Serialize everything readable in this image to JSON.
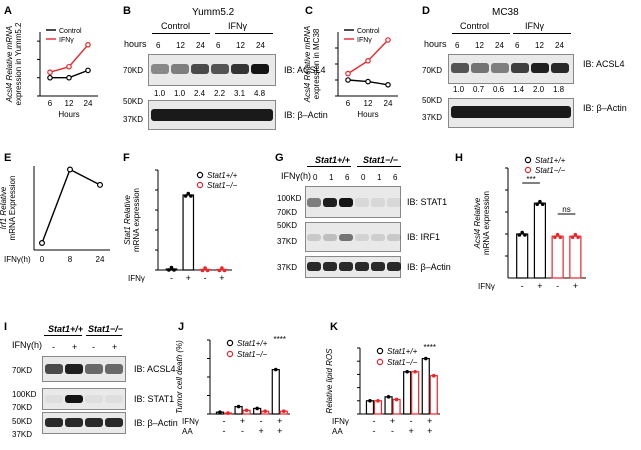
{
  "panels": {
    "A": {
      "letter": "A",
      "ylabel1": "Acsl4 Relative mRNA",
      "ylabel2": "expression in Yumm5.2",
      "xlabel": "Hours",
      "legend": [
        "Control",
        "IFNγ"
      ],
      "ticks": [
        "6",
        "12",
        "24"
      ]
    },
    "B": {
      "letter": "B",
      "title": "Yumm5.2",
      "cond_control": "Control",
      "cond_ifn": "IFNγ",
      "hours_label": "hours",
      "hours": [
        "6",
        "12",
        "24",
        "6",
        "12",
        "24"
      ],
      "values": [
        "1.0",
        "1.0",
        "2.4",
        "2.2",
        "3.1",
        "4.8"
      ],
      "ib1": "IB: ACSL4",
      "ib2": "IB: β–Actin",
      "mw1": "70KD",
      "mw2": "50KD",
      "mw3": "37KD"
    },
    "C": {
      "letter": "C",
      "ylabel1": "Acsl4 Relative mRNA",
      "ylabel2": "expression in MC38",
      "xlabel": "Hours",
      "legend": [
        "Control",
        "IFNγ"
      ],
      "ticks": [
        "6",
        "12",
        "24"
      ]
    },
    "D": {
      "letter": "D",
      "title": "MC38",
      "cond_control": "Control",
      "cond_ifn": "IFNγ",
      "hours_label": "hours",
      "hours": [
        "6",
        "12",
        "24",
        "6",
        "12",
        "24"
      ],
      "values": [
        "1.0",
        "0.7",
        "0.6",
        "1.4",
        "2.0",
        "1.8"
      ],
      "ib1": "IB: ACSL4",
      "ib2": "IB: β–Actin",
      "mw1": "70KD",
      "mw2": "50KD",
      "mw3": "37KD"
    },
    "E": {
      "letter": "E",
      "ylabel1": "Irf1 Relative",
      "ylabel2": "mRNA Expression",
      "xlabel": "IFNγ(h)",
      "ticks": [
        "0",
        "8",
        "24"
      ]
    },
    "F": {
      "letter": "F",
      "ylabel1": "Stat1 Relative",
      "ylabel2": "mRNA expression",
      "legend": [
        "Stat1+/+",
        "Stat1−/−"
      ],
      "row_label": "IFNγ",
      "signs": [
        "-",
        "+",
        "-",
        "+"
      ]
    },
    "G": {
      "letter": "G",
      "geno1": "Stat1+/+",
      "geno2": "Stat1−/−",
      "time_label": "IFNγ(h)",
      "times": [
        "0",
        "1",
        "6",
        "0",
        "1",
        "6"
      ],
      "ib1": "IB: STAT1",
      "ib2": "IB: IRF1",
      "ib3": "IB: β–Actin",
      "mw1": "100KD",
      "mw2": "70KD",
      "mw3": "50KD",
      "mw4": "37KD",
      "mw5": "37KD"
    },
    "H": {
      "letter": "H",
      "ylabel1": "Acsl4 Relative",
      "ylabel2": "mRNA expression",
      "legend": [
        "Stat1+/+",
        "Stat1−/−"
      ],
      "row_label": "IFNγ",
      "signs": [
        "-",
        "+",
        "-",
        "+"
      ],
      "sig1": "***",
      "sig2": "ns"
    },
    "I": {
      "letter": "I",
      "geno1": "Stat1+/+",
      "geno2": "Stat1−/−",
      "time_label": "IFNγ(h)",
      "signs": [
        "-",
        "+",
        "-",
        "+"
      ],
      "ib1": "IB: ACSL4",
      "ib2": "IB: STAT1",
      "ib3": "IB: β–Actin",
      "mw1": "70KD",
      "mw2": "100KD",
      "mw3": "70KD",
      "mw4": "50KD",
      "mw5": "37KD"
    },
    "J": {
      "letter": "J",
      "ylabel": "Tumor cell death (%)",
      "legend": [
        "Stat1+/+",
        "Stat1−/−"
      ],
      "row1": "IFNγ",
      "row2": "AA",
      "ifn_signs": [
        "-",
        "+",
        "-",
        "+"
      ],
      "aa_signs": [
        "-",
        "-",
        "+",
        "+"
      ],
      "sig": "****"
    },
    "K": {
      "letter": "K",
      "ylabel": "Relative lipid ROS",
      "legend": [
        "Stat1+/+",
        "Stat1−/−"
      ],
      "row1": "IFNγ",
      "row2": "AA",
      "ifn_signs": [
        "-",
        "+",
        "-",
        "+"
      ],
      "aa_signs": [
        "-",
        "-",
        "+",
        "+"
      ],
      "sig": "****"
    }
  },
  "chart_data": [
    {
      "panel": "A",
      "type": "line",
      "x": [
        "6",
        "12",
        "24"
      ],
      "xlabel": "Hours",
      "ylabel": "Acsl4 Relative mRNA expression in Yumm5.2",
      "ylim": [
        0,
        3.5
      ],
      "series": [
        {
          "name": "Control",
          "values": [
            1.0,
            1.0,
            1.4
          ],
          "color": "#000000"
        },
        {
          "name": "IFNγ",
          "values": [
            1.3,
            1.6,
            2.8
          ],
          "color": "#e8262b"
        }
      ]
    },
    {
      "panel": "C",
      "type": "line",
      "x": [
        "6",
        "12",
        "24"
      ],
      "xlabel": "Hours",
      "ylabel": "Acsl4 Relative mRNA expression in MC38",
      "ylim": [
        0,
        4
      ],
      "series": [
        {
          "name": "Control",
          "values": [
            1.0,
            0.9,
            0.7
          ],
          "color": "#000000"
        },
        {
          "name": "IFNγ",
          "values": [
            1.4,
            2.2,
            3.5
          ],
          "color": "#e8262b"
        }
      ]
    },
    {
      "panel": "E",
      "type": "line",
      "x": [
        "0",
        "8",
        "24"
      ],
      "xlabel": "IFNγ(h)",
      "ylabel": "Irf1 Relative mRNA Expression",
      "ylim": [
        0,
        12
      ],
      "series": [
        {
          "values": [
            1,
            11.5,
            9.3
          ],
          "color": "#000000"
        }
      ]
    },
    {
      "panel": "F",
      "type": "bar",
      "categories": [
        "-",
        "+",
        "-",
        "+"
      ],
      "ylabel": "Stat1 Relative mRNA expression",
      "ylim": [
        0,
        100
      ],
      "values": [
        1,
        75,
        0.5,
        0.5
      ],
      "colors": [
        "#000000",
        "#000000",
        "#e8262b",
        "#e8262b"
      ]
    },
    {
      "panel": "H",
      "type": "bar",
      "categories": [
        "-",
        "+",
        "-",
        "+"
      ],
      "ylabel": "Acsl4 Relative mRNA expression",
      "ylim": [
        0,
        2.5
      ],
      "values": [
        1.0,
        1.7,
        0.95,
        0.95
      ],
      "colors": [
        "#000000",
        "#000000",
        "#e8262b",
        "#e8262b"
      ]
    },
    {
      "panel": "J",
      "type": "bar",
      "ylabel": "Tumor cell death (%)",
      "ylim": [
        0,
        40
      ],
      "groups": [
        {
          "ifn": "-",
          "aa": "-"
        },
        {
          "ifn": "+",
          "aa": "-"
        },
        {
          "ifn": "-",
          "aa": "+"
        },
        {
          "ifn": "+",
          "aa": "+"
        }
      ],
      "series": [
        {
          "name": "Stat1+/+",
          "values": [
            1,
            4,
            3,
            24
          ],
          "color": "#000000"
        },
        {
          "name": "Stat1−/−",
          "values": [
            0.5,
            2,
            1.5,
            1.5
          ],
          "color": "#e8262b"
        }
      ]
    },
    {
      "panel": "K",
      "type": "bar",
      "ylabel": "Relative lipid ROS",
      "ylim": [
        0,
        5
      ],
      "groups": [
        {
          "ifn": "-",
          "aa": "-"
        },
        {
          "ifn": "+",
          "aa": "-"
        },
        {
          "ifn": "-",
          "aa": "+"
        },
        {
          "ifn": "+",
          "aa": "+"
        }
      ],
      "series": [
        {
          "name": "Stat1+/+",
          "values": [
            1.0,
            1.3,
            3.2,
            4.2
          ],
          "color": "#000000"
        },
        {
          "name": "Stat1−/−",
          "values": [
            1.0,
            1.1,
            3.2,
            2.9
          ],
          "color": "#e8262b"
        }
      ]
    }
  ]
}
